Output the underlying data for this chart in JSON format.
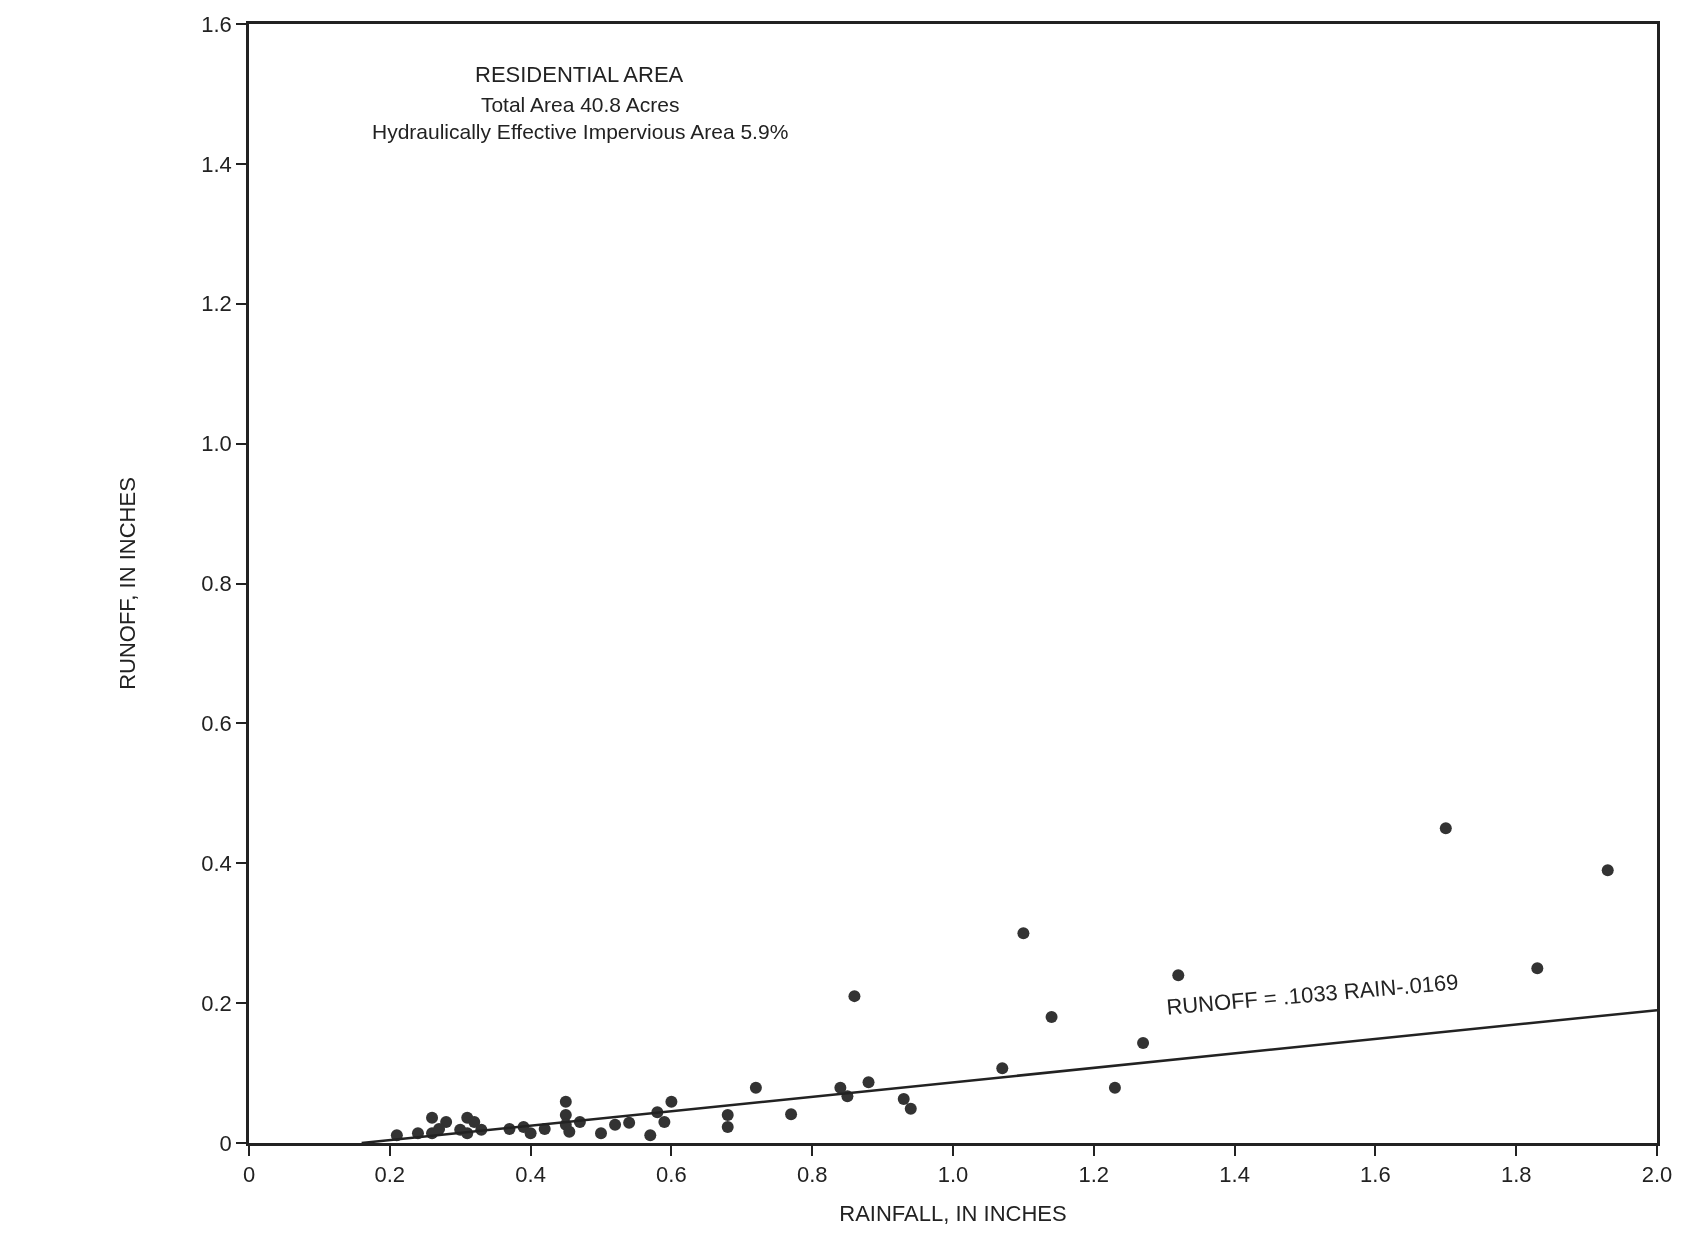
{
  "chart_data": {
    "type": "scatter",
    "title": "RESIDENTIAL AREA",
    "subtitle": "Total Area 40.8 Acres\nHydraulically Effective Impervious Area 5.9%",
    "xlabel": "RAINFALL, IN INCHES",
    "ylabel": "RUNOFF, IN INCHES",
    "series": [
      {
        "color": "#333333",
        "marker": "circle",
        "x": [
          0.21,
          0.24,
          0.26,
          0.26,
          0.28,
          0.27,
          0.3,
          0.31,
          0.32,
          0.31,
          0.33,
          0.37,
          0.39,
          0.4,
          0.42,
          0.45,
          0.45,
          0.45,
          0.47,
          0.455,
          0.5,
          0.52,
          0.54,
          0.57,
          0.58,
          0.59,
          0.6,
          0.68,
          0.68,
          0.72,
          0.77,
          0.84,
          0.85,
          0.86,
          0.88,
          0.93,
          0.94,
          1.07,
          1.1,
          1.14,
          1.23,
          1.27,
          1.32,
          1.7,
          1.83,
          1.93
        ],
        "values": [
          0.011,
          0.014,
          0.036,
          0.014,
          0.03,
          0.02,
          0.019,
          0.036,
          0.03,
          0.014,
          0.019,
          0.02,
          0.023,
          0.014,
          0.02,
          0.059,
          0.04,
          0.026,
          0.03,
          0.016,
          0.014,
          0.026,
          0.029,
          0.011,
          0.044,
          0.03,
          0.059,
          0.04,
          0.023,
          0.079,
          0.041,
          0.079,
          0.067,
          0.21,
          0.087,
          0.063,
          0.049,
          0.107,
          0.3,
          0.18,
          0.079,
          0.143,
          0.24,
          0.45,
          0.25,
          0.39
        ]
      },
      {
        "type": "line",
        "color": "#222222",
        "marker": "none",
        "line_style": "solid",
        "x": [
          0.16,
          2.0
        ],
        "values": [
          0,
          0.19
        ]
      }
    ],
    "annotations": [
      "RUNOFF = .1033 RAIN-.0169"
    ],
    "xlim": [
      0,
      2.0
    ],
    "ylim": [
      0,
      1.6
    ],
    "xticks": [
      0,
      0.2,
      0.4,
      0.6,
      0.8,
      {
        "value": 1.0,
        "label": "1.0"
      },
      1.2,
      1.4,
      1.6,
      1.8,
      {
        "value": 2.0,
        "label": "2.0"
      }
    ],
    "yticks": [
      0,
      0.2,
      0.4,
      0.6,
      0.8,
      {
        "value": 1.0,
        "label": "1.0"
      },
      1.2,
      1.4,
      1.6
    ]
  }
}
